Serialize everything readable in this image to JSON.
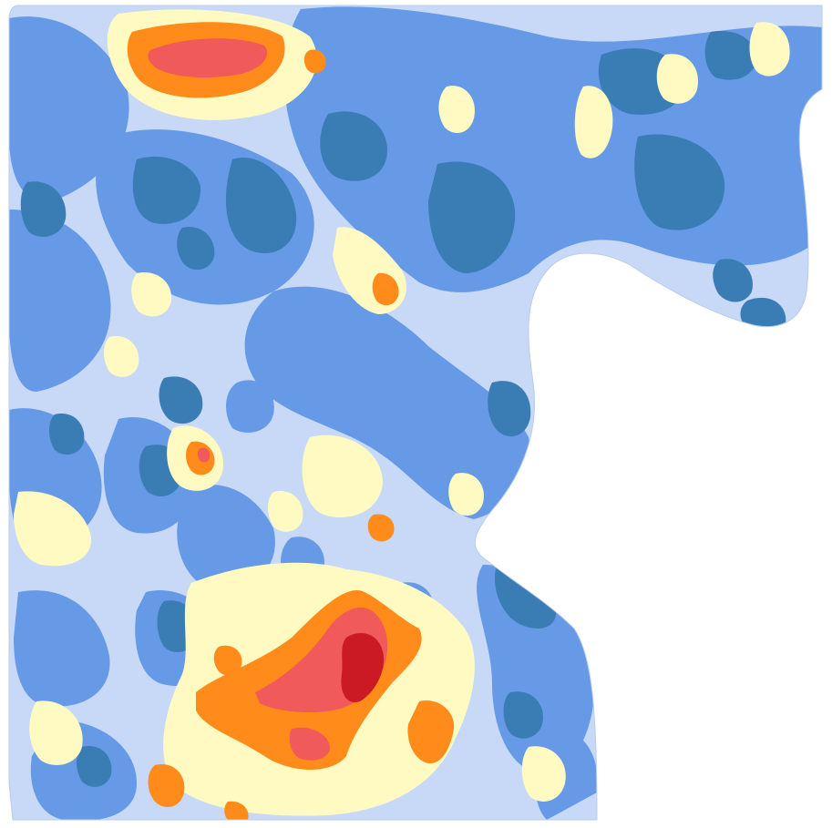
{
  "map": {
    "type": "interpolated-field-heatmap",
    "classes": [
      {
        "level": 1,
        "color": "#3A7DB5"
      },
      {
        "level": 2,
        "color": "#6699E6"
      },
      {
        "level": 3,
        "color": "#C7D9F7"
      },
      {
        "level": 4,
        "color": "#FFFAC2"
      },
      {
        "level": 5,
        "color": "#FF8C1A"
      },
      {
        "level": 6,
        "color": "#F05A5A"
      },
      {
        "level": 7,
        "color": "#CC1A24"
      }
    ],
    "background_color": "#FFFFFF"
  }
}
